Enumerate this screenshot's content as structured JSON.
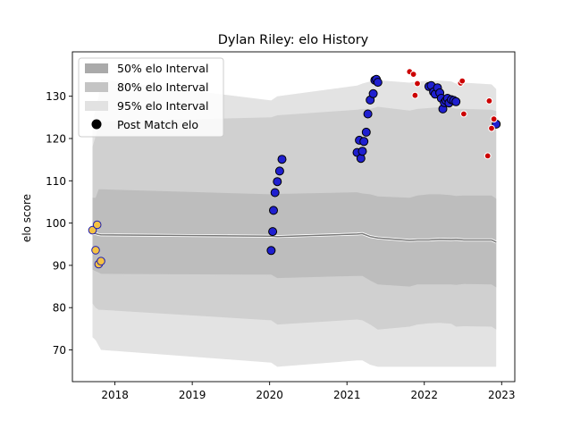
{
  "chart_data": {
    "type": "scatter",
    "title": "Dylan Riley: elo History",
    "xlabel": "",
    "ylabel": "elo score",
    "xlim": [
      2017.45,
      2023.17
    ],
    "ylim": [
      62.5,
      140.5
    ],
    "x_ticks": [
      2018,
      2019,
      2020,
      2021,
      2022,
      2023
    ],
    "x_tick_labels": [
      "2018",
      "2019",
      "2020",
      "2021",
      "2022",
      "2023"
    ],
    "y_ticks": [
      70,
      80,
      90,
      100,
      110,
      120,
      130
    ],
    "y_tick_labels": [
      "70",
      "80",
      "90",
      "100",
      "110",
      "120",
      "130"
    ],
    "grid": false,
    "legend": {
      "placement": "upper-left",
      "entries": [
        {
          "label": "50% elo Interval",
          "color": "#aaaaaa"
        },
        {
          "label": "80% elo Interval",
          "color": "#c4c4c4"
        },
        {
          "label": "95% elo Interval",
          "color": "#e2e2e2"
        },
        {
          "label": "Post Match elo",
          "color": "#000000"
        }
      ]
    },
    "colors": {
      "band95": "#e3e3e3",
      "band80": "#d0d0d0",
      "band50": "#bdbdbd",
      "mean_line": "#777777",
      "mean_highlight": "#ffffff",
      "orange_fill": "#f5c242",
      "orange_edge": "#1f1fb4",
      "blue_fill": "#1f1fd0",
      "blue_edge": "#000000",
      "red_fill": "#cc0000",
      "red_edge": "#ffffff"
    },
    "series": [
      {
        "style": "orange",
        "x": [
          2017.71,
          2017.77,
          2017.75,
          2017.79,
          2017.82
        ],
        "y": [
          98.3,
          99.6,
          93.6,
          90.3,
          91.0
        ]
      },
      {
        "style": "blue",
        "x": [
          2020.02,
          2020.04,
          2020.05,
          2020.07,
          2020.1,
          2020.13,
          2020.16,
          2021.13,
          2021.16,
          2021.18,
          2021.2,
          2021.22,
          2021.25,
          2021.27,
          2021.3,
          2021.34,
          2021.36,
          2021.38,
          2021.4,
          2022.06,
          2022.09,
          2022.12,
          2022.14,
          2022.17,
          2022.2,
          2022.22,
          2022.24,
          2022.26,
          2022.28,
          2022.3,
          2022.32,
          2022.35,
          2022.38,
          2022.41,
          2022.93
        ],
        "y": [
          93.5,
          98.0,
          103.0,
          107.2,
          109.8,
          112.3,
          115.1,
          116.7,
          119.6,
          115.3,
          117.0,
          119.3,
          121.5,
          125.8,
          129.1,
          130.6,
          133.8,
          134.0,
          133.3,
          132.3,
          132.5,
          131.0,
          130.5,
          132.0,
          130.8,
          129.5,
          127.0,
          128.5,
          129.0,
          129.5,
          128.4,
          129.2,
          129.0,
          128.7,
          123.4
        ]
      },
      {
        "style": "red",
        "x": [
          2021.81,
          2021.86,
          2021.88,
          2022.47,
          2022.49,
          2022.51,
          2022.84,
          2022.87,
          2022.9
        ],
        "y": [
          135.8,
          135.2,
          130.2,
          133.1,
          133.6,
          125.8,
          128.9,
          122.4,
          124.6
        ]
      },
      {
        "style": "red",
        "x": [
          2021.91,
          2022.82
        ],
        "y": [
          133.0,
          115.9
        ]
      }
    ],
    "bands": {
      "x": [
        2017.71,
        2017.75,
        2017.79,
        2017.82,
        2020.02,
        2020.1,
        2021.13,
        2021.2,
        2021.3,
        2021.4,
        2021.81,
        2021.91,
        2022.06,
        2022.2,
        2022.35,
        2022.41,
        2022.51,
        2022.87,
        2022.93
      ],
      "mean": [
        97.5,
        97.5,
        97.3,
        97.2,
        96.9,
        96.8,
        97.4,
        97.5,
        96.8,
        96.5,
        95.9,
        96.0,
        96.0,
        96.2,
        96.1,
        96.2,
        96.0,
        96.0,
        95.5
      ],
      "p50": [
        [
          89.0,
          106.0
        ],
        [
          88.6,
          106.0
        ],
        [
          88.3,
          108.0
        ],
        [
          88.0,
          108.0
        ],
        [
          87.8,
          106.8
        ],
        [
          87.0,
          106.9
        ],
        [
          87.5,
          107.3
        ],
        [
          87.5,
          107.0
        ],
        [
          86.4,
          106.8
        ],
        [
          85.5,
          106.3
        ],
        [
          85.0,
          106.0
        ],
        [
          85.5,
          106.5
        ],
        [
          85.5,
          106.8
        ],
        [
          85.5,
          106.8
        ],
        [
          85.5,
          106.6
        ],
        [
          85.4,
          106.4
        ],
        [
          85.6,
          106.5
        ],
        [
          85.5,
          106.5
        ],
        [
          84.8,
          105.8
        ]
      ],
      "p80": [
        [
          81.0,
          118.0
        ],
        [
          80.0,
          120.5
        ],
        [
          79.5,
          123.0
        ],
        [
          79.5,
          124.0
        ],
        [
          77.0,
          125.0
        ],
        [
          76.0,
          125.5
        ],
        [
          77.2,
          126.8
        ],
        [
          77.0,
          127.0
        ],
        [
          76.0,
          127.0
        ],
        [
          74.8,
          127.5
        ],
        [
          75.5,
          126.6
        ],
        [
          76.0,
          127.0
        ],
        [
          76.3,
          127.2
        ],
        [
          76.4,
          127.4
        ],
        [
          76.2,
          127.3
        ],
        [
          75.5,
          127.0
        ],
        [
          75.6,
          127.0
        ],
        [
          75.5,
          126.8
        ],
        [
          74.8,
          126.5
        ]
      ],
      "p95": [
        [
          73.0,
          124.0
        ],
        [
          72.3,
          127.0
        ],
        [
          71.0,
          130.0
        ],
        [
          70.0,
          134.0
        ],
        [
          67.0,
          129.0
        ],
        [
          66.0,
          130.0
        ],
        [
          67.5,
          132.5
        ],
        [
          67.5,
          133.0
        ],
        [
          66.5,
          133.5
        ],
        [
          66.0,
          133.8
        ],
        [
          66.0,
          133.2
        ],
        [
          66.0,
          133.5
        ],
        [
          66.0,
          133.7
        ],
        [
          66.0,
          133.7
        ],
        [
          66.0,
          133.5
        ],
        [
          66.0,
          133.0
        ],
        [
          66.0,
          133.2
        ],
        [
          66.0,
          132.8
        ],
        [
          66.0,
          131.7
        ]
      ]
    }
  }
}
